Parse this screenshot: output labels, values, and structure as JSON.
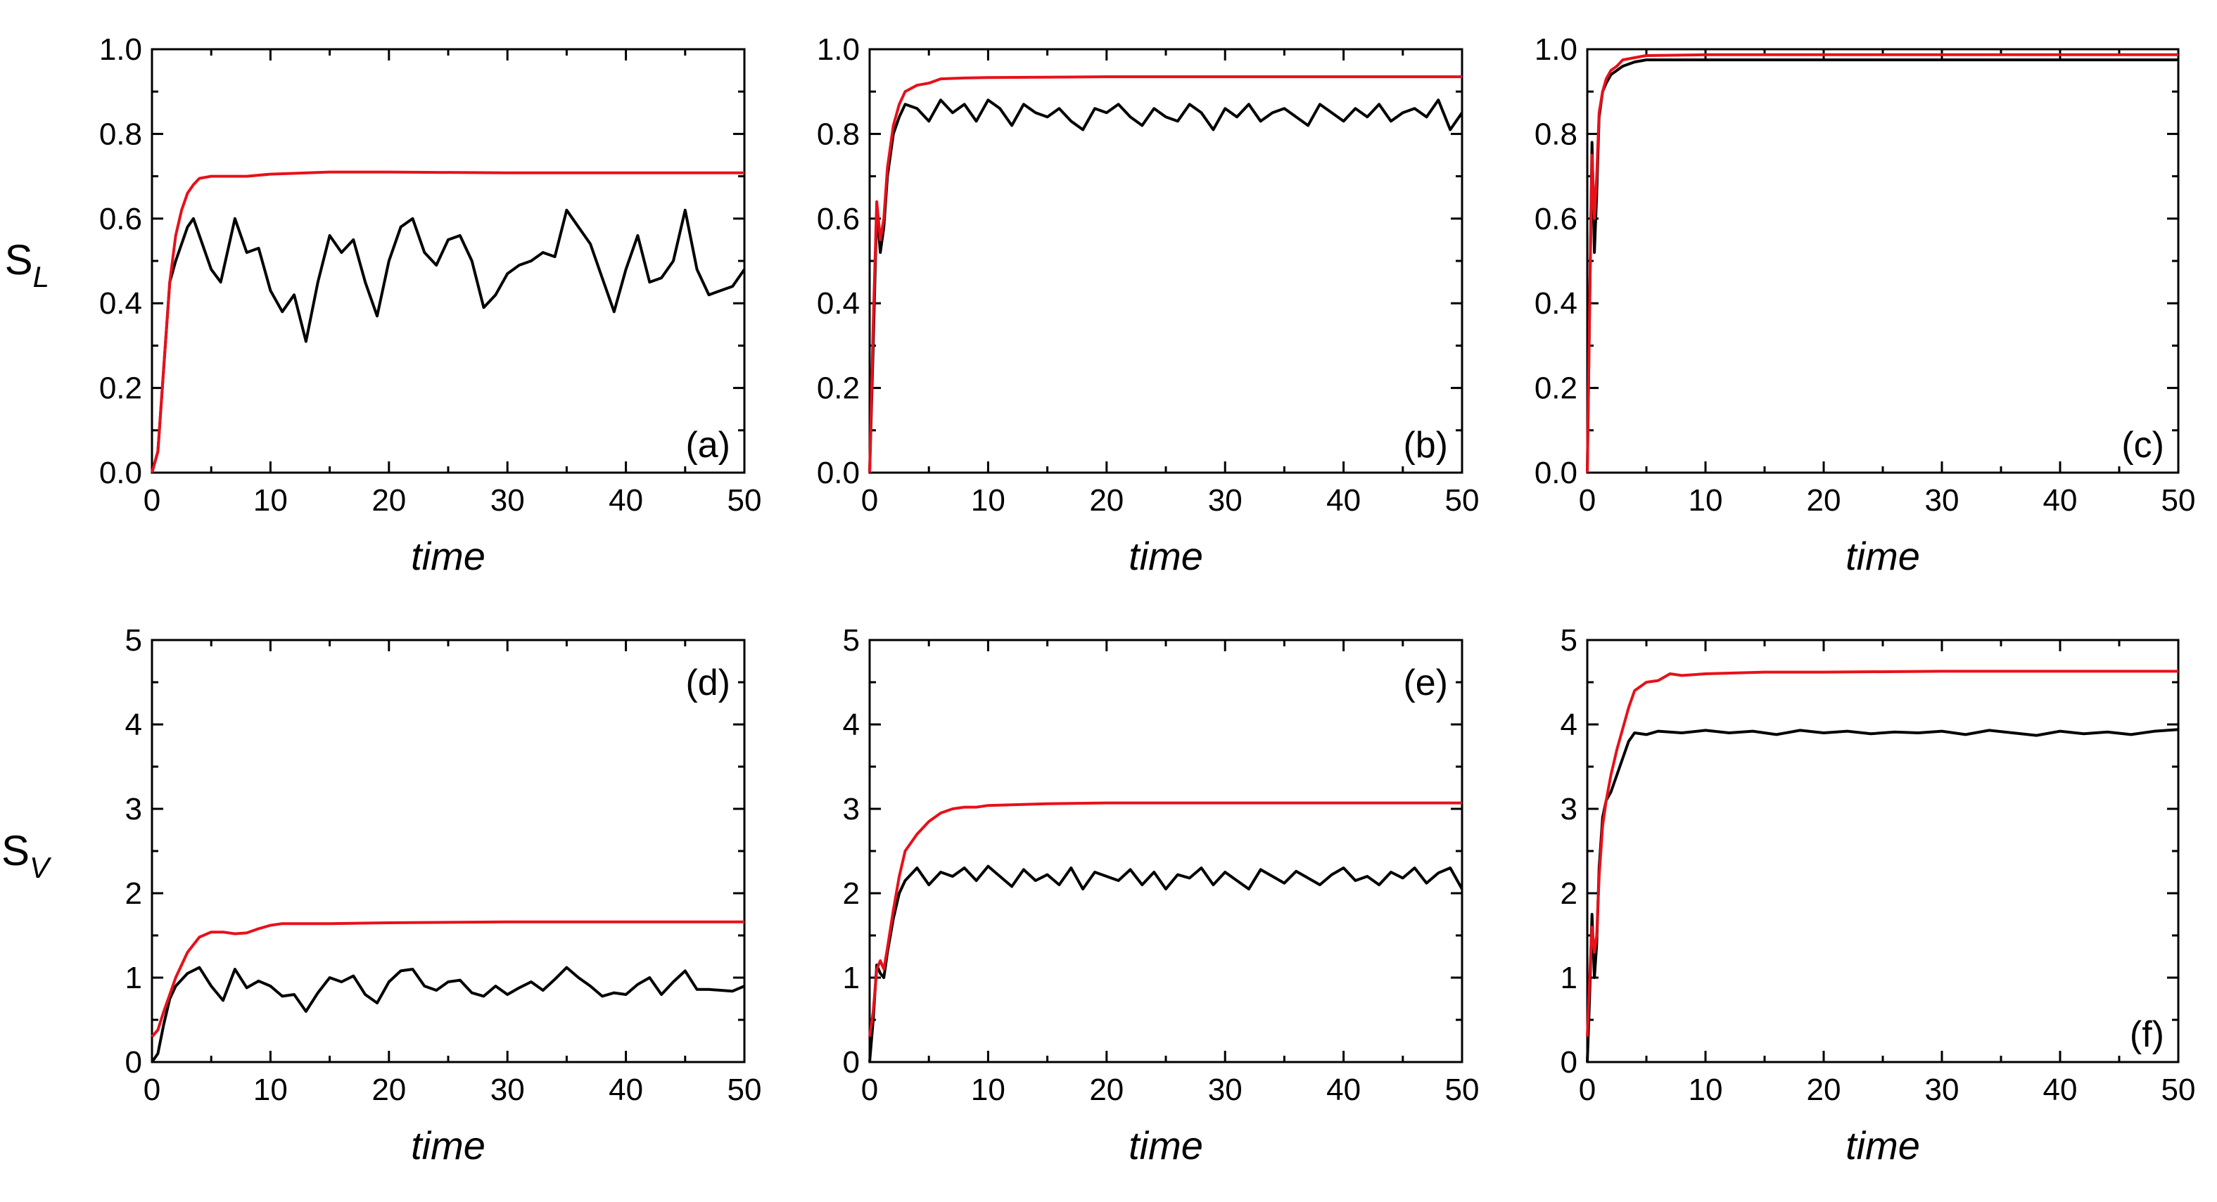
{
  "chart_data": [
    {
      "id": "a",
      "type": "line",
      "panel_label": "(a)",
      "ylabel_main": "S",
      "ylabel_sub": "L",
      "xlabel": "time",
      "xlim": [
        0,
        50
      ],
      "ylim": [
        0,
        1.0
      ],
      "xticks": [
        "0",
        "10",
        "20",
        "30",
        "40",
        "50"
      ],
      "yticks": [
        "0.0",
        "0.2",
        "0.4",
        "0.6",
        "0.8",
        "1.0"
      ],
      "series": [
        {
          "name": "red",
          "color": "#e8101a",
          "x": [
            0,
            0.5,
            1,
            1.5,
            2,
            2.5,
            3,
            3.5,
            4,
            5,
            6,
            8,
            10,
            15,
            20,
            30,
            40,
            50
          ],
          "y": [
            0,
            0.05,
            0.25,
            0.45,
            0.56,
            0.62,
            0.66,
            0.68,
            0.695,
            0.7,
            0.7,
            0.7,
            0.705,
            0.71,
            0.71,
            0.708,
            0.708,
            0.708
          ]
        },
        {
          "name": "black",
          "color": "#000000",
          "x": [
            0,
            0.5,
            1,
            1.5,
            2,
            3,
            3.5,
            4,
            5,
            5.8,
            7,
            8,
            9,
            10,
            11,
            12,
            13,
            14,
            15,
            16,
            17,
            18,
            19,
            20,
            21,
            22,
            23,
            24,
            25,
            26,
            27,
            28,
            29,
            30,
            31,
            32,
            33,
            34,
            35,
            36,
            37,
            38,
            39,
            40,
            41,
            42,
            43,
            44,
            45,
            46,
            47,
            48,
            49,
            50
          ],
          "y": [
            0,
            0.05,
            0.25,
            0.45,
            0.5,
            0.58,
            0.6,
            0.56,
            0.48,
            0.45,
            0.6,
            0.52,
            0.53,
            0.43,
            0.38,
            0.42,
            0.31,
            0.45,
            0.56,
            0.52,
            0.55,
            0.45,
            0.37,
            0.5,
            0.58,
            0.6,
            0.52,
            0.49,
            0.55,
            0.56,
            0.5,
            0.39,
            0.42,
            0.47,
            0.49,
            0.5,
            0.52,
            0.51,
            0.62,
            0.58,
            0.54,
            0.46,
            0.38,
            0.48,
            0.56,
            0.45,
            0.46,
            0.5,
            0.62,
            0.48,
            0.42,
            0.43,
            0.44,
            0.48
          ]
        }
      ]
    },
    {
      "id": "b",
      "type": "line",
      "panel_label": "(b)",
      "xlabel": "time",
      "xlim": [
        0,
        50
      ],
      "ylim": [
        0,
        1.0
      ],
      "xticks": [
        "0",
        "10",
        "20",
        "30",
        "40",
        "50"
      ],
      "yticks": [
        "0.0",
        "0.2",
        "0.4",
        "0.6",
        "0.8",
        "1.0"
      ],
      "series": [
        {
          "name": "red",
          "color": "#e8101a",
          "x": [
            0,
            0.3,
            0.6,
            0.9,
            1.2,
            1.5,
            2,
            2.5,
            3,
            4,
            5,
            6,
            8,
            10,
            20,
            30,
            40,
            50
          ],
          "y": [
            0,
            0.35,
            0.64,
            0.55,
            0.6,
            0.72,
            0.82,
            0.87,
            0.9,
            0.915,
            0.92,
            0.93,
            0.932,
            0.933,
            0.935,
            0.935,
            0.935,
            0.935
          ]
        },
        {
          "name": "black",
          "color": "#000000",
          "x": [
            0,
            0.3,
            0.6,
            0.9,
            1.2,
            1.5,
            2,
            2.5,
            3,
            4,
            5,
            6,
            7,
            8,
            9,
            10,
            11,
            12,
            13,
            14,
            15,
            16,
            17,
            18,
            19,
            20,
            21,
            22,
            23,
            24,
            25,
            26,
            27,
            28,
            29,
            30,
            31,
            32,
            33,
            34,
            35,
            36,
            37,
            38,
            39,
            40,
            41,
            42,
            43,
            44,
            45,
            46,
            47,
            48,
            49,
            50
          ],
          "y": [
            0,
            0.3,
            0.62,
            0.52,
            0.58,
            0.7,
            0.8,
            0.84,
            0.87,
            0.86,
            0.83,
            0.88,
            0.85,
            0.87,
            0.83,
            0.88,
            0.86,
            0.82,
            0.87,
            0.85,
            0.84,
            0.86,
            0.83,
            0.81,
            0.86,
            0.85,
            0.87,
            0.84,
            0.82,
            0.86,
            0.84,
            0.83,
            0.87,
            0.85,
            0.81,
            0.86,
            0.84,
            0.87,
            0.83,
            0.85,
            0.86,
            0.84,
            0.82,
            0.87,
            0.85,
            0.83,
            0.86,
            0.84,
            0.87,
            0.83,
            0.85,
            0.86,
            0.84,
            0.88,
            0.81,
            0.85
          ]
        }
      ]
    },
    {
      "id": "c",
      "type": "line",
      "panel_label": "(c)",
      "xlabel": "time",
      "xlim": [
        0,
        50
      ],
      "ylim": [
        0,
        1.0
      ],
      "xticks": [
        "0",
        "10",
        "20",
        "30",
        "40",
        "50"
      ],
      "yticks": [
        "0.0",
        "0.2",
        "0.4",
        "0.6",
        "0.8",
        "1.0"
      ],
      "series": [
        {
          "name": "red",
          "color": "#e8101a",
          "x": [
            0,
            0.2,
            0.4,
            0.6,
            0.8,
            1.0,
            1.3,
            1.6,
            2,
            2.5,
            3,
            4,
            5,
            10,
            20,
            30,
            40,
            50
          ],
          "y": [
            0,
            0.4,
            0.75,
            0.6,
            0.7,
            0.85,
            0.9,
            0.93,
            0.95,
            0.96,
            0.975,
            0.98,
            0.985,
            0.987,
            0.987,
            0.987,
            0.987,
            0.987
          ]
        },
        {
          "name": "black",
          "color": "#000000",
          "x": [
            0,
            0.2,
            0.4,
            0.6,
            0.8,
            1.0,
            1.3,
            1.6,
            2,
            2.5,
            3,
            4,
            5,
            10,
            20,
            30,
            40,
            50
          ],
          "y": [
            0,
            0.4,
            0.78,
            0.52,
            0.66,
            0.84,
            0.9,
            0.92,
            0.94,
            0.95,
            0.96,
            0.97,
            0.975,
            0.975,
            0.975,
            0.975,
            0.975,
            0.975
          ]
        }
      ]
    },
    {
      "id": "d",
      "type": "line",
      "panel_label": "(d)",
      "ylabel_main": "S",
      "ylabel_sub": "V",
      "xlabel": "time",
      "xlim": [
        0,
        50
      ],
      "ylim": [
        0,
        5
      ],
      "xticks": [
        "0",
        "10",
        "20",
        "30",
        "40",
        "50"
      ],
      "yticks": [
        "0",
        "1",
        "2",
        "3",
        "4",
        "5"
      ],
      "series": [
        {
          "name": "red",
          "color": "#e8101a",
          "x": [
            0,
            0.5,
            1,
            1.5,
            2,
            3,
            4,
            5,
            6,
            7,
            8,
            9,
            10,
            11,
            12,
            15,
            20,
            30,
            40,
            50
          ],
          "y": [
            0.3,
            0.38,
            0.6,
            0.8,
            1.0,
            1.3,
            1.48,
            1.54,
            1.54,
            1.52,
            1.53,
            1.58,
            1.62,
            1.64,
            1.64,
            1.64,
            1.65,
            1.66,
            1.66,
            1.66
          ]
        },
        {
          "name": "black",
          "color": "#000000",
          "x": [
            0,
            0.5,
            1,
            1.5,
            2,
            3,
            4,
            5,
            6,
            7,
            8,
            9,
            10,
            11,
            12,
            13,
            14,
            15,
            16,
            17,
            18,
            19,
            20,
            21,
            22,
            23,
            24,
            25,
            26,
            27,
            28,
            29,
            30,
            31,
            32,
            33,
            34,
            35,
            36,
            37,
            38,
            39,
            40,
            41,
            42,
            43,
            44,
            45,
            46,
            47,
            48,
            49,
            50
          ],
          "y": [
            0,
            0.1,
            0.45,
            0.75,
            0.9,
            1.05,
            1.12,
            0.9,
            0.73,
            1.1,
            0.88,
            0.96,
            0.9,
            0.78,
            0.8,
            0.6,
            0.82,
            1.0,
            0.95,
            1.02,
            0.8,
            0.7,
            0.95,
            1.08,
            1.1,
            0.9,
            0.85,
            0.95,
            0.97,
            0.82,
            0.78,
            0.9,
            0.8,
            0.88,
            0.95,
            0.85,
            0.98,
            1.12,
            1.0,
            0.9,
            0.78,
            0.82,
            0.8,
            0.92,
            1.0,
            0.8,
            0.95,
            1.08,
            0.86,
            0.86,
            0.85,
            0.84,
            0.9
          ]
        }
      ]
    },
    {
      "id": "e",
      "type": "line",
      "panel_label": "(e)",
      "xlabel": "time",
      "xlim": [
        0,
        50
      ],
      "ylim": [
        0,
        5
      ],
      "xticks": [
        "0",
        "10",
        "20",
        "30",
        "40",
        "50"
      ],
      "yticks": [
        "0",
        "1",
        "2",
        "3",
        "4",
        "5"
      ],
      "series": [
        {
          "name": "red",
          "color": "#e8101a",
          "x": [
            0,
            0.3,
            0.6,
            0.9,
            1.2,
            1.5,
            2,
            2.5,
            3,
            4,
            5,
            6,
            7,
            8,
            9,
            10,
            15,
            20,
            30,
            40,
            50
          ],
          "y": [
            0.3,
            0.6,
            1.1,
            1.2,
            1.1,
            1.35,
            1.8,
            2.2,
            2.5,
            2.7,
            2.85,
            2.95,
            3.0,
            3.02,
            3.02,
            3.04,
            3.06,
            3.07,
            3.07,
            3.07,
            3.07
          ]
        },
        {
          "name": "black",
          "color": "#000000",
          "x": [
            0,
            0.3,
            0.6,
            0.9,
            1.2,
            1.5,
            2,
            2.5,
            3,
            4,
            5,
            6,
            7,
            8,
            9,
            10,
            11,
            12,
            13,
            14,
            15,
            16,
            17,
            18,
            19,
            20,
            21,
            22,
            23,
            24,
            25,
            26,
            27,
            28,
            29,
            30,
            31,
            32,
            33,
            34,
            35,
            36,
            37,
            38,
            39,
            40,
            41,
            42,
            43,
            44,
            45,
            46,
            47,
            48,
            49,
            50
          ],
          "y": [
            0,
            0.5,
            1.15,
            1.05,
            1.0,
            1.3,
            1.7,
            2.0,
            2.15,
            2.3,
            2.1,
            2.25,
            2.2,
            2.3,
            2.15,
            2.32,
            2.2,
            2.08,
            2.28,
            2.15,
            2.22,
            2.1,
            2.3,
            2.05,
            2.25,
            2.2,
            2.15,
            2.28,
            2.1,
            2.25,
            2.05,
            2.22,
            2.18,
            2.3,
            2.1,
            2.25,
            2.15,
            2.05,
            2.28,
            2.2,
            2.12,
            2.26,
            2.18,
            2.1,
            2.22,
            2.3,
            2.15,
            2.2,
            2.1,
            2.25,
            2.18,
            2.3,
            2.12,
            2.24,
            2.3,
            2.05
          ]
        }
      ]
    },
    {
      "id": "f",
      "type": "line",
      "panel_label": "(f)",
      "xlabel": "time",
      "xlim": [
        0,
        50
      ],
      "ylim": [
        0,
        5
      ],
      "xticks": [
        "0",
        "10",
        "20",
        "30",
        "40",
        "50"
      ],
      "yticks": [
        "0",
        "1",
        "2",
        "3",
        "4",
        "5"
      ],
      "series": [
        {
          "name": "red",
          "color": "#e8101a",
          "x": [
            0,
            0.2,
            0.4,
            0.6,
            0.8,
            1.0,
            1.3,
            1.6,
            2,
            2.5,
            3,
            3.5,
            4,
            5,
            6,
            7,
            8,
            10,
            15,
            20,
            30,
            40,
            50
          ],
          "y": [
            0.3,
            1.0,
            1.6,
            1.3,
            1.5,
            2.2,
            2.8,
            3.1,
            3.4,
            3.7,
            3.95,
            4.2,
            4.4,
            4.5,
            4.52,
            4.6,
            4.58,
            4.6,
            4.62,
            4.62,
            4.63,
            4.63,
            4.63
          ]
        },
        {
          "name": "black",
          "color": "#000000",
          "x": [
            0,
            0.2,
            0.4,
            0.6,
            0.8,
            1.0,
            1.3,
            1.6,
            2,
            2.5,
            3,
            3.5,
            4,
            5,
            6,
            8,
            10,
            12,
            14,
            16,
            18,
            20,
            22,
            24,
            26,
            28,
            30,
            32,
            34,
            36,
            38,
            40,
            42,
            44,
            46,
            48,
            50
          ],
          "y": [
            0,
            0.8,
            1.75,
            1.0,
            1.4,
            2.3,
            2.9,
            3.1,
            3.2,
            3.4,
            3.6,
            3.8,
            3.9,
            3.88,
            3.92,
            3.9,
            3.93,
            3.9,
            3.92,
            3.88,
            3.93,
            3.9,
            3.92,
            3.89,
            3.91,
            3.9,
            3.92,
            3.88,
            3.93,
            3.9,
            3.87,
            3.92,
            3.89,
            3.91,
            3.88,
            3.92,
            3.94
          ]
        }
      ]
    }
  ]
}
